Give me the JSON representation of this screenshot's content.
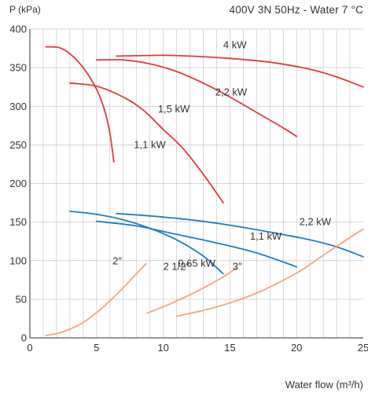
{
  "chart_data": {
    "type": "line",
    "subtitle": "400V 3N 50Hz - Water 7 °C",
    "ylabel": "P (kPa)",
    "xlabel": "Water flow (m³/h)",
    "xlim": [
      0,
      25
    ],
    "ylim": [
      0,
      400
    ],
    "x_ticks": [
      "0",
      "5",
      "10",
      "15",
      "20",
      "25"
    ],
    "y_ticks": [
      "0",
      "50",
      "100",
      "150",
      "200",
      "250",
      "300",
      "350",
      "400"
    ],
    "grid": {
      "vertical": true,
      "vertical_step": 1,
      "horizontal": true,
      "horizontal_step": 50
    },
    "colors": {
      "red": "#e03c3c",
      "blue": "#1f7fbf",
      "orange": "#f4a57c",
      "grid": "#c8c8c8",
      "axis": "#555555"
    },
    "series": [
      {
        "group": "pump-red",
        "name": "4 kW",
        "color": "red",
        "points": [
          [
            6.5,
            365
          ],
          [
            8,
            365.5
          ],
          [
            10,
            366
          ],
          [
            12,
            365
          ],
          [
            15,
            362
          ],
          [
            18,
            357
          ],
          [
            21,
            348
          ],
          [
            23,
            338
          ],
          [
            25,
            325
          ]
        ]
      },
      {
        "group": "pump-red",
        "name": "2,2 kW",
        "color": "red",
        "points": [
          [
            5,
            360
          ],
          [
            7,
            360
          ],
          [
            9,
            355
          ],
          [
            11,
            345
          ],
          [
            13,
            330
          ],
          [
            15,
            312
          ],
          [
            17,
            292
          ],
          [
            19,
            272
          ],
          [
            20,
            261
          ]
        ]
      },
      {
        "group": "pump-red",
        "name": "1,5 kW",
        "color": "red",
        "points": [
          [
            3,
            330
          ],
          [
            5,
            326
          ],
          [
            7,
            312
          ],
          [
            8.5,
            295
          ],
          [
            10,
            270
          ],
          [
            11.5,
            245
          ],
          [
            13,
            212
          ],
          [
            14.5,
            175
          ]
        ]
      },
      {
        "group": "pump-red",
        "name": "1,1 kW",
        "color": "red",
        "points": [
          [
            1.2,
            377
          ],
          [
            2.2,
            376
          ],
          [
            3,
            368
          ],
          [
            4,
            350
          ],
          [
            5,
            322
          ],
          [
            5.6,
            295
          ],
          [
            6,
            265
          ],
          [
            6.3,
            228
          ]
        ]
      },
      {
        "group": "pump-blue",
        "name": "2,2 kW",
        "color": "blue",
        "points": [
          [
            6.5,
            161
          ],
          [
            9,
            158
          ],
          [
            12,
            153
          ],
          [
            15,
            146
          ],
          [
            18,
            137
          ],
          [
            21,
            127
          ],
          [
            23,
            118
          ],
          [
            25,
            105
          ]
        ]
      },
      {
        "group": "pump-blue",
        "name": "1,1 kW",
        "color": "blue",
        "points": [
          [
            5,
            151
          ],
          [
            8,
            145
          ],
          [
            11,
            134
          ],
          [
            14,
            123
          ],
          [
            17,
            110
          ],
          [
            20,
            92
          ]
        ]
      },
      {
        "group": "pump-blue",
        "name": "0,65 kW",
        "color": "blue",
        "points": [
          [
            3,
            164
          ],
          [
            5,
            160
          ],
          [
            7,
            153
          ],
          [
            9,
            142
          ],
          [
            11,
            127
          ],
          [
            13,
            106
          ],
          [
            14.5,
            83
          ]
        ]
      },
      {
        "group": "pipe",
        "name": "2″",
        "color": "orange",
        "points": [
          [
            1.2,
            3
          ],
          [
            2.5,
            8
          ],
          [
            4,
            20
          ],
          [
            5.5,
            40
          ],
          [
            7,
            65
          ],
          [
            8.7,
            96
          ]
        ]
      },
      {
        "group": "pipe",
        "name": "2 1/2″",
        "color": "orange",
        "points": [
          [
            8.8,
            32
          ],
          [
            10.5,
            44
          ],
          [
            12.5,
            60
          ],
          [
            14.5,
            79
          ],
          [
            15.5,
            91
          ]
        ]
      },
      {
        "group": "pipe",
        "name": "3″",
        "color": "orange",
        "points": [
          [
            11,
            28
          ],
          [
            14,
            40
          ],
          [
            17,
            58
          ],
          [
            20,
            84
          ],
          [
            22,
            107
          ],
          [
            24,
            130
          ],
          [
            25,
            141
          ]
        ]
      }
    ],
    "annotations": [
      {
        "text": "4 kW",
        "x": 14.5,
        "y": 375
      },
      {
        "text": "2,2 kW",
        "x": 13.9,
        "y": 314
      },
      {
        "text": "1,5 kW",
        "x": 9.6,
        "y": 292
      },
      {
        "text": "1,1 kW",
        "x": 7.8,
        "y": 246
      },
      {
        "text": "2,2 kW",
        "x": 20.2,
        "y": 146
      },
      {
        "text": "1,1 kW",
        "x": 16.5,
        "y": 127
      },
      {
        "text": "0,65 kW",
        "x": 11.1,
        "y": 92
      },
      {
        "text": "2″",
        "x": 6.2,
        "y": 95
      },
      {
        "text": "2 1/2″",
        "x": 10,
        "y": 88
      },
      {
        "text": "3″",
        "x": 15.2,
        "y": 88
      }
    ]
  }
}
